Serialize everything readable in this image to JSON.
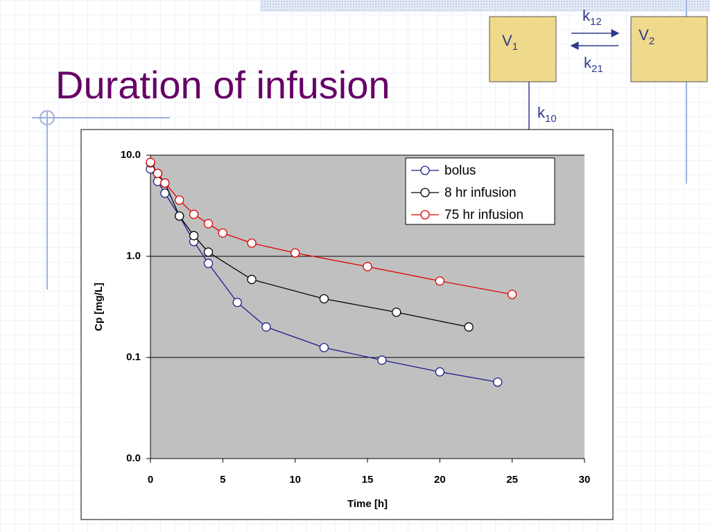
{
  "title": "Duration of infusion",
  "diagram": {
    "compartments": [
      {
        "main": "V",
        "sub": "1"
      },
      {
        "main": "V",
        "sub": "2"
      }
    ],
    "rates": [
      {
        "main": "k",
        "sub": "12"
      },
      {
        "main": "k",
        "sub": "21"
      },
      {
        "main": "k",
        "sub": "10"
      }
    ]
  },
  "chart_data": {
    "type": "line",
    "xlabel": "Time [h]",
    "ylabel": "Cp [mg/L]",
    "xlim": [
      0,
      30
    ],
    "xticks": [
      0,
      5,
      10,
      15,
      20,
      25,
      30
    ],
    "ylim": [
      0.01,
      10
    ],
    "log_y": true,
    "yticks": [
      {
        "value": 0.01,
        "label": "0.0"
      },
      {
        "value": 0.1,
        "label": "0.1"
      },
      {
        "value": 1,
        "label": "1.0"
      },
      {
        "value": 10,
        "label": "10.0"
      }
    ],
    "grid": true,
    "legend": "upper right",
    "series": [
      {
        "name": "bolus",
        "color": "#1c1c8c",
        "x": [
          0,
          0.5,
          1,
          2,
          3,
          4,
          6,
          8,
          12,
          16,
          20,
          24
        ],
        "values": [
          7.3,
          5.5,
          4.2,
          2.5,
          1.4,
          0.85,
          0.35,
          0.2,
          0.125,
          0.094,
          0.072,
          0.057
        ]
      },
      {
        "name": "8 hr infusion",
        "color": "#000000",
        "x": [
          0,
          0.5,
          1,
          2,
          3,
          4,
          7,
          12,
          17,
          22
        ],
        "values": [
          8.4,
          6.6,
          5.3,
          2.5,
          1.6,
          1.1,
          0.59,
          0.38,
          0.28,
          0.2
        ]
      },
      {
        "name": "75 hr infusion",
        "color": "#e00000",
        "x": [
          0,
          0.5,
          1,
          2,
          3,
          4,
          5,
          7,
          10,
          15,
          20,
          25
        ],
        "values": [
          8.5,
          6.6,
          5.3,
          3.6,
          2.6,
          2.1,
          1.7,
          1.35,
          1.08,
          0.79,
          0.57,
          0.42
        ]
      }
    ]
  }
}
